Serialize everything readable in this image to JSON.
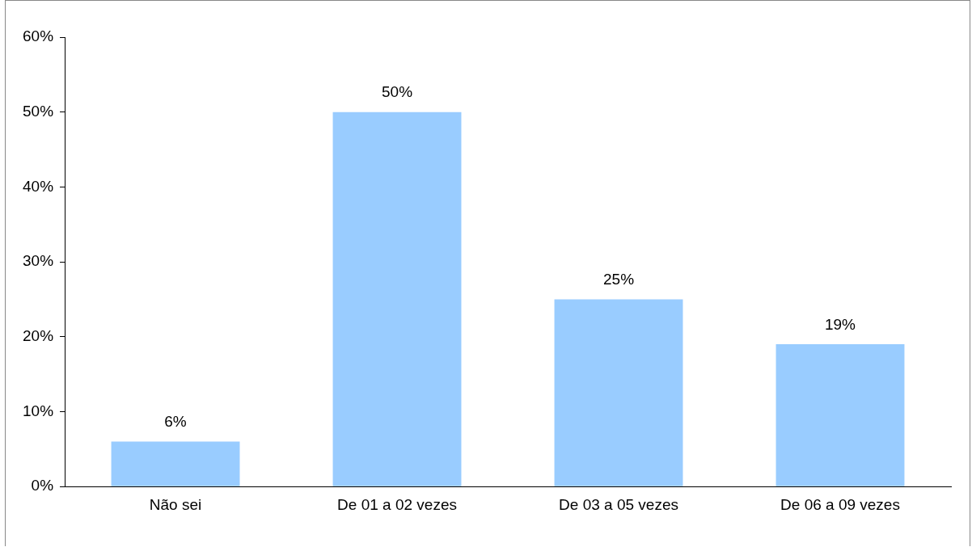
{
  "chart_data": {
    "type": "bar",
    "categories": [
      "Não sei",
      "De 01 a 02 vezes",
      "De 03 a 05 vezes",
      "De 06 a 09 vezes"
    ],
    "values": [
      6,
      50,
      25,
      19
    ],
    "color": "#99ccff",
    "ylim": [
      0,
      60
    ],
    "yticks": [
      {
        "value": 0,
        "label": "0%"
      },
      {
        "value": 10,
        "label": "10%"
      },
      {
        "value": 20,
        "label": "20%"
      },
      {
        "value": 30,
        "label": "30%"
      },
      {
        "value": 40,
        "label": "40%"
      },
      {
        "value": 50,
        "label": "50%"
      },
      {
        "value": 60,
        "label": "60%"
      }
    ],
    "value_labels": [
      "6%",
      "50%",
      "25%",
      "19%"
    ],
    "grid": false,
    "legend": false
  }
}
